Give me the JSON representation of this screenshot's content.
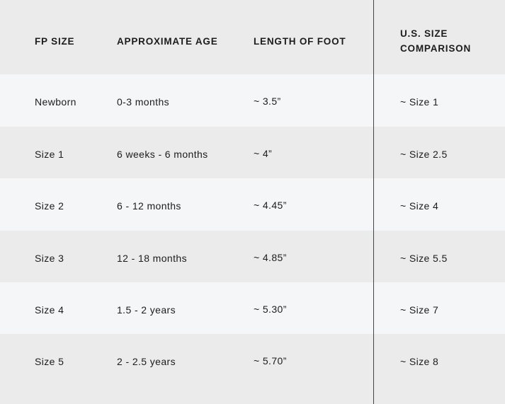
{
  "headers": [
    "FP SIZE",
    "APPROXIMATE AGE",
    "LENGTH OF FOOT",
    "U.S. SIZE",
    "COMPARISON"
  ],
  "rows": [
    [
      "Newborn",
      "0-3 months",
      "~ 3.5”",
      "~ Size 1"
    ],
    [
      "Size 1",
      "6 weeks - 6 months",
      "~ 4”",
      "~ Size 2.5"
    ],
    [
      "Size 2",
      "6 - 12 months",
      "~ 4.45”",
      "~ Size 4"
    ],
    [
      "Size 3",
      "12 - 18 months",
      "~ 4.85”",
      "~ Size 5.5"
    ],
    [
      "Size 4",
      "1.5 - 2 years",
      "~ 5.30”",
      "~ Size 7"
    ],
    [
      "Size 5",
      "2 - 2.5 years",
      "~ 5.70”",
      "~ Size 8"
    ]
  ],
  "colors": {
    "header_bg": "#ebebeb",
    "row_light": "#f5f6f8",
    "row_dark": "#ebebeb",
    "divider": "#444444",
    "text": "#1c1c1c"
  }
}
